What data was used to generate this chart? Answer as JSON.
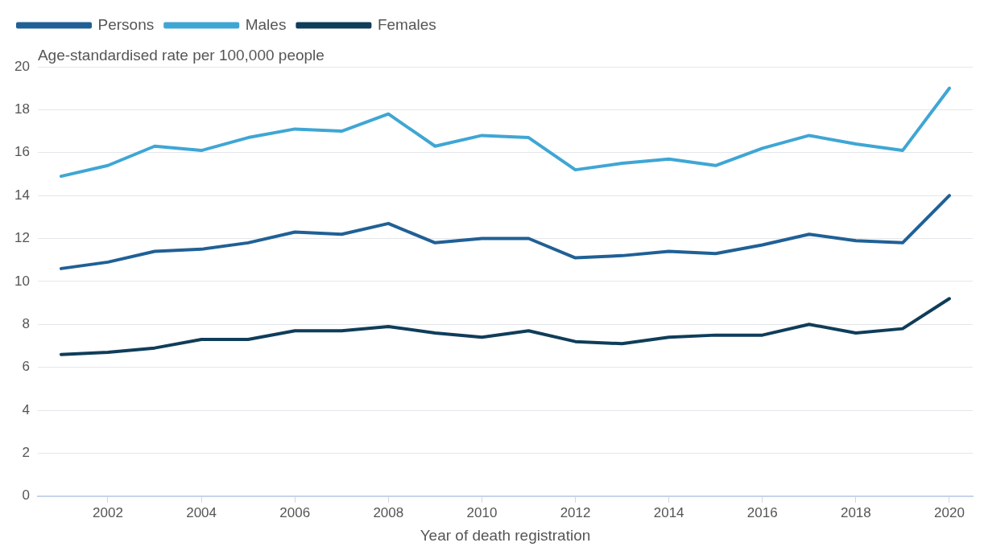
{
  "chart_data": {
    "type": "line",
    "ylabel": "Age-standardised rate per 100,000 people",
    "xlabel": "Year of death registration",
    "x": [
      2001,
      2002,
      2003,
      2004,
      2005,
      2006,
      2007,
      2008,
      2009,
      2010,
      2011,
      2012,
      2013,
      2014,
      2015,
      2016,
      2017,
      2018,
      2019,
      2020
    ],
    "series": [
      {
        "name": "Persons",
        "color": "#206095",
        "values": [
          10.6,
          10.9,
          11.4,
          11.5,
          11.8,
          12.3,
          12.2,
          12.7,
          11.8,
          12.0,
          12.0,
          11.1,
          11.2,
          11.4,
          11.3,
          11.7,
          12.2,
          11.9,
          11.8,
          14.0
        ]
      },
      {
        "name": "Males",
        "color": "#3fa6d4",
        "values": [
          14.9,
          15.4,
          16.3,
          16.1,
          16.7,
          17.1,
          17.0,
          17.8,
          16.3,
          16.8,
          16.7,
          15.2,
          15.5,
          15.7,
          15.4,
          16.2,
          16.8,
          16.4,
          16.1,
          19.0
        ]
      },
      {
        "name": "Females",
        "color": "#0f3d5a",
        "values": [
          6.6,
          6.7,
          6.9,
          7.3,
          7.3,
          7.7,
          7.7,
          7.9,
          7.6,
          7.4,
          7.7,
          7.2,
          7.1,
          7.4,
          7.5,
          7.5,
          8.0,
          7.6,
          7.8,
          9.2
        ]
      }
    ],
    "xlim": [
      2000.5,
      2020.5
    ],
    "xticks": [
      2002,
      2004,
      2006,
      2008,
      2010,
      2012,
      2014,
      2016,
      2018,
      2020
    ],
    "ylim": [
      0,
      20
    ],
    "yticks": [
      0,
      2,
      4,
      6,
      8,
      10,
      12,
      14,
      16,
      18,
      20
    ],
    "grid": "y",
    "legend": "top left",
    "marker": "none",
    "line_style": "solid"
  }
}
